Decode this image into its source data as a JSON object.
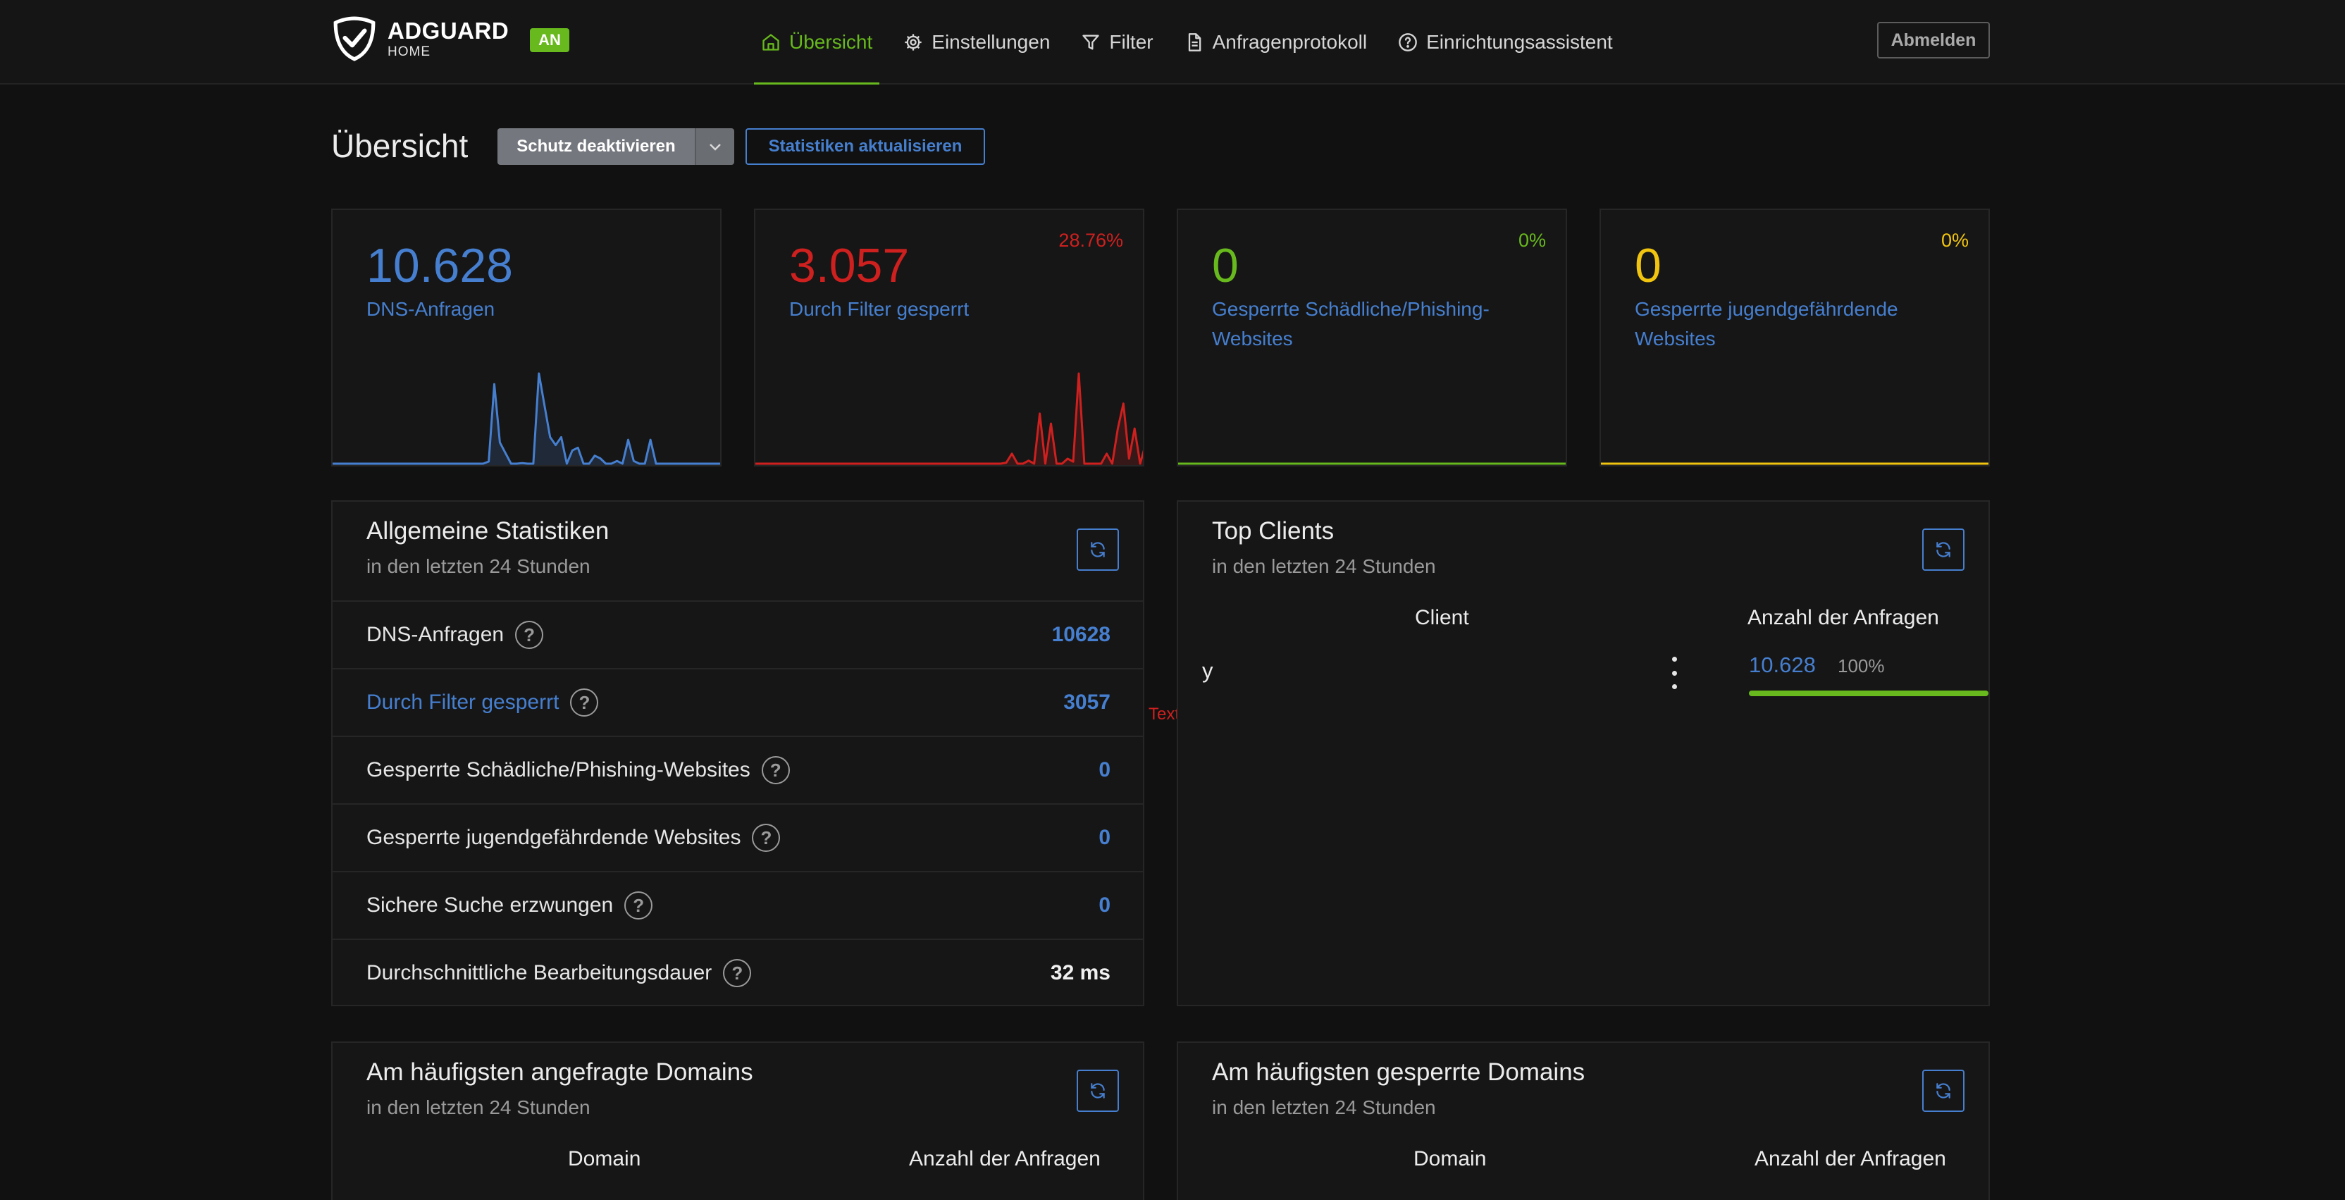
{
  "header": {
    "brand": "ADGUARD",
    "brand_sub": "HOME",
    "status_badge": "AN",
    "nav": [
      {
        "label": "Übersicht",
        "icon": "home-icon",
        "active": true
      },
      {
        "label": "Einstellungen",
        "icon": "gear-icon"
      },
      {
        "label": "Filter",
        "icon": "filter-icon"
      },
      {
        "label": "Anfragenprotokoll",
        "icon": "document-icon"
      },
      {
        "label": "Einrichtungsassistent",
        "icon": "help-circle-icon"
      }
    ],
    "logout_label": "Abmelden"
  },
  "page": {
    "title": "Übersicht",
    "protect_button": "Schutz deaktivieren",
    "refresh_button": "Statistiken aktualisieren"
  },
  "cards": [
    {
      "value": "10.628",
      "label": "DNS-Anfragen",
      "percent": "",
      "color": "#467fcf",
      "spark": [
        0,
        0,
        0,
        0,
        0,
        0,
        0,
        0,
        0,
        0,
        0,
        0,
        0,
        0,
        0,
        0,
        0,
        0,
        0,
        0,
        0,
        0,
        0,
        0,
        0,
        0,
        0,
        0,
        4,
        150,
        40,
        20,
        0,
        0,
        1,
        0,
        0,
        170,
        110,
        50,
        35,
        50,
        0,
        25,
        30,
        0,
        0,
        15,
        10,
        0,
        0,
        5,
        0,
        45,
        5,
        0,
        0,
        45,
        0,
        0,
        0,
        0,
        0,
        0,
        0,
        0,
        0,
        0,
        0,
        0,
        0
      ]
    },
    {
      "value": "3.057",
      "label": "Durch Filter gesperrt",
      "percent": "28.76%",
      "color": "#cd201f",
      "spark": [
        0,
        0,
        0,
        0,
        0,
        0,
        0,
        0,
        0,
        0,
        0,
        0,
        0,
        0,
        0,
        0,
        0,
        0,
        0,
        0,
        0,
        0,
        0,
        0,
        0,
        0,
        0,
        0,
        0,
        0,
        0,
        0,
        0,
        0,
        0,
        0,
        0,
        0,
        0,
        0,
        0,
        0,
        0,
        0,
        0,
        1,
        10,
        0,
        0,
        3,
        0,
        50,
        0,
        40,
        0,
        0,
        5,
        2,
        90,
        0,
        0,
        0,
        0,
        10,
        0,
        35,
        60,
        5,
        35,
        0,
        20
      ]
    },
    {
      "value": "0",
      "label": "Gesperrte Schädliche/Phishing-Websites",
      "percent": "0%",
      "color": "#67b91d",
      "spark": []
    },
    {
      "value": "0",
      "label": "Gesperrte jugendgefährdende Websites",
      "percent": "0%",
      "color": "#f1c40f",
      "spark": []
    }
  ],
  "general_stats": {
    "title": "Allgemeine Statistiken",
    "subtitle": "in den letzten 24 Stunden",
    "rows": [
      {
        "name": "DNS-Anfragen",
        "value": "10628"
      },
      {
        "name": "Durch Filter gesperrt",
        "value": "3057"
      },
      {
        "name": "Gesperrte Schädliche/Phishing-Websites",
        "value": "0"
      },
      {
        "name": "Gesperrte jugendgefährdende Websites",
        "value": "0"
      },
      {
        "name": "Sichere Suche erzwungen",
        "value": "0"
      },
      {
        "name": "Durchschnittliche Bearbeitungsdauer",
        "value": "32 ms"
      }
    ],
    "help_glyph": "?"
  },
  "top_clients": {
    "title": "Top Clients",
    "subtitle": "in den letzten 24 Stunden",
    "col_client": "Client",
    "col_count": "Anzahl der Anfragen",
    "rows": [
      {
        "name": "y",
        "count": "10.628",
        "percent": "100%",
        "fill": 1.0
      }
    ]
  },
  "floating_text": "Text",
  "top_domains": {
    "title": "Am häufigsten angefragte Domains",
    "subtitle": "in den letzten 24 Stunden",
    "col_domain": "Domain",
    "col_count": "Anzahl der Anfragen"
  },
  "blocked_domains": {
    "title": "Am häufigsten gesperrte Domains",
    "subtitle": "in den letzten 24 Stunden",
    "col_domain": "Domain",
    "col_count": "Anzahl der Anfragen"
  }
}
